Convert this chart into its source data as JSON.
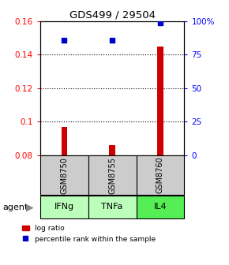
{
  "title": "GDS499 / 29504",
  "samples": [
    "GSM8750",
    "GSM8755",
    "GSM8760"
  ],
  "agents": [
    "IFNg",
    "TNFa",
    "IL4"
  ],
  "log_ratios": [
    0.097,
    0.086,
    0.145
  ],
  "percentile_ranks": [
    86,
    86,
    99
  ],
  "ylim_left": [
    0.08,
    0.16
  ],
  "ylim_right": [
    0,
    100
  ],
  "yticks_left": [
    0.08,
    0.1,
    0.12,
    0.14,
    0.16
  ],
  "yticks_right": [
    0,
    25,
    50,
    75,
    100
  ],
  "bar_color": "#cc0000",
  "dot_color": "#0000cc",
  "agent_colors": [
    "#bbffbb",
    "#bbffbb",
    "#55ee55"
  ],
  "sample_box_color": "#cccccc",
  "bar_width": 0.12,
  "legend_bar_label": "log ratio",
  "legend_dot_label": "percentile rank within the sample"
}
